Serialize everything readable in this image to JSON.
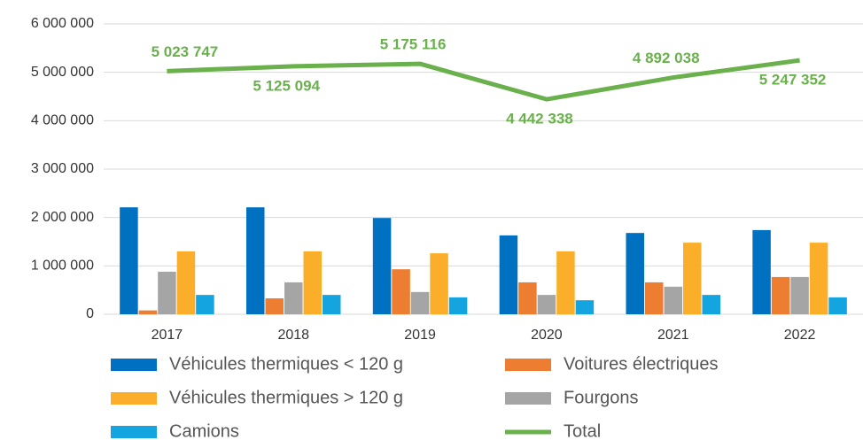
{
  "chart_data": {
    "type": "bar",
    "categories": [
      "2017",
      "2018",
      "2019",
      "2020",
      "2021",
      "2022"
    ],
    "ylim": [
      0,
      6000000
    ],
    "yticks": [
      0,
      {
        "value": 1000000,
        "label": "1 000 000"
      },
      {
        "value": 2000000,
        "label": "2 000 000"
      },
      {
        "value": 3000000,
        "label": "3 000 000"
      },
      {
        "value": 4000000,
        "label": "4 000 000"
      },
      {
        "value": 5000000,
        "label": "5 000 000"
      },
      {
        "value": 6000000,
        "label": "6 000 000"
      }
    ],
    "grid": true,
    "series": [
      {
        "name": "Véhicules thermiques < 120 g",
        "color": "#0070c0",
        "values": [
          2210000,
          2210000,
          1990000,
          1630000,
          1680000,
          1740000
        ]
      },
      {
        "name": "Voitures électriques",
        "color": "#ed7d31",
        "values": [
          80000,
          330000,
          930000,
          660000,
          660000,
          770000
        ]
      },
      {
        "name": "Véhicules thermiques > 120 g",
        "color": "#fbae2a",
        "values": [
          1300000,
          1300000,
          1260000,
          1300000,
          1480000,
          1480000
        ]
      },
      {
        "name": "Fourgons",
        "color": "#a5a5a5",
        "values": [
          880000,
          660000,
          460000,
          400000,
          570000,
          770000
        ]
      },
      {
        "name": "Camions",
        "color": "#14a5e0",
        "values": [
          400000,
          400000,
          350000,
          290000,
          400000,
          350000
        ]
      },
      {
        "name": "Total",
        "type": "line",
        "color": "#6ab04c",
        "values": [
          5023747,
          5125094,
          5175116,
          4442338,
          4892038,
          5247352
        ],
        "value_labels": [
          "5 023 747",
          "5 125 094",
          "5 175 116",
          "4 442 338",
          "4 892 038",
          "5 247 352"
        ]
      }
    ]
  }
}
